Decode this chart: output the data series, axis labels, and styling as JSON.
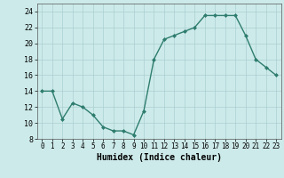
{
  "x": [
    0,
    1,
    2,
    3,
    4,
    5,
    6,
    7,
    8,
    9,
    10,
    11,
    12,
    13,
    14,
    15,
    16,
    17,
    18,
    19,
    20,
    21,
    22,
    23
  ],
  "y": [
    14,
    14,
    10.5,
    12.5,
    12,
    11,
    9.5,
    9,
    9,
    8.5,
    11.5,
    18,
    20.5,
    21,
    21.5,
    22,
    23.5,
    23.5,
    23.5,
    23.5,
    21,
    18,
    17,
    16
  ],
  "line_color": "#2e7d6e",
  "marker": "D",
  "marker_size": 2,
  "linewidth": 1.0,
  "bg_color": "#cdeaea",
  "grid_color": "#aacfcf",
  "xlabel": "Humidex (Indice chaleur)",
  "xlabel_fontsize": 7,
  "tick_fontsize": 6,
  "ylim": [
    8,
    25
  ],
  "xlim": [
    -0.5,
    23.5
  ],
  "yticks": [
    8,
    10,
    12,
    14,
    16,
    18,
    20,
    22,
    24
  ],
  "xticks": [
    0,
    1,
    2,
    3,
    4,
    5,
    6,
    7,
    8,
    9,
    10,
    11,
    12,
    13,
    14,
    15,
    16,
    17,
    18,
    19,
    20,
    21,
    22,
    23
  ]
}
